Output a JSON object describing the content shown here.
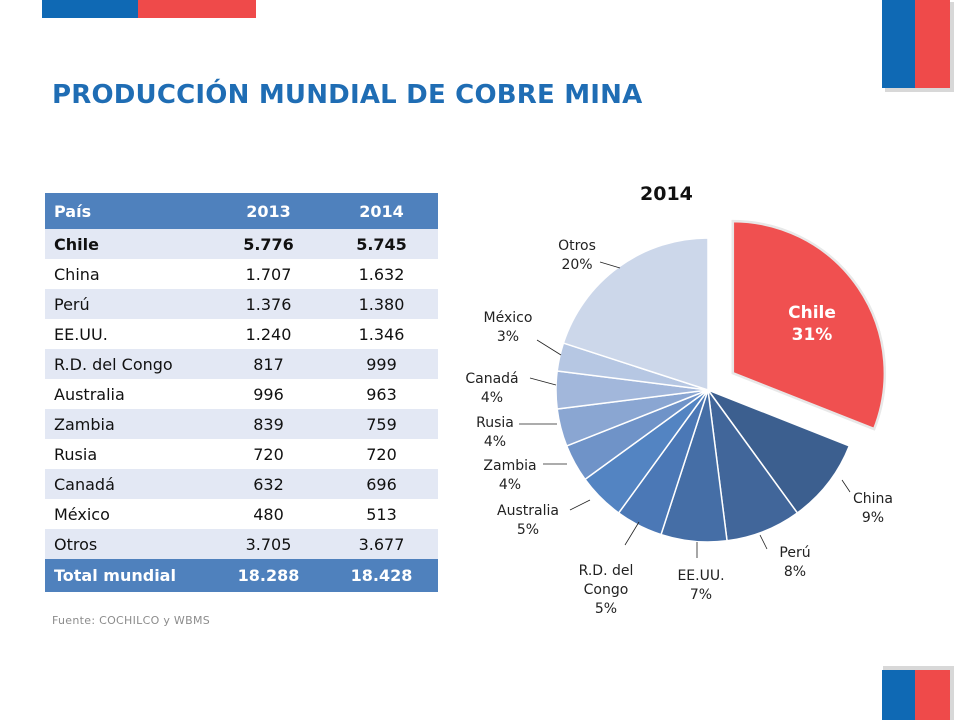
{
  "header": {
    "title": "PRODUCCIÓN MUNDIAL DE COBRE MINA"
  },
  "colors": {
    "flag_blue": "#0f69b4",
    "flag_red": "#ef4a4a",
    "title": "#1f6db4",
    "table_header": "#4f81bd",
    "table_band": "#e3e8f4",
    "highlight_slice": "#f05050"
  },
  "table": {
    "columns": [
      "País",
      "2013",
      "2014"
    ],
    "rows": [
      [
        "Chile",
        "5.776",
        "5.745"
      ],
      [
        "China",
        "1.707",
        "1.632"
      ],
      [
        "Perú",
        "1.376",
        "1.380"
      ],
      [
        "EE.UU.",
        "1.240",
        "1.346"
      ],
      [
        "R.D. del Congo",
        "817",
        "999"
      ],
      [
        "Australia",
        "996",
        "963"
      ],
      [
        "Zambia",
        "839",
        "759"
      ],
      [
        "Rusia",
        "720",
        "720"
      ],
      [
        "Canadá",
        "632",
        "696"
      ],
      [
        "México",
        "480",
        "513"
      ],
      [
        "Otros",
        "3.705",
        "3.677"
      ]
    ],
    "total": [
      "Total mundial",
      "18.288",
      "18.428"
    ]
  },
  "source": "Fuente: COCHILCO y WBMS",
  "chart_data": {
    "type": "pie",
    "title": "2014",
    "categories": [
      "Chile",
      "China",
      "Perú",
      "EE.UU.",
      "R.D. del Congo",
      "Australia",
      "Zambia",
      "Rusia",
      "Canadá",
      "México",
      "Otros"
    ],
    "values": [
      31,
      9,
      8,
      7,
      5,
      5,
      4,
      4,
      4,
      3,
      20
    ],
    "labels": [
      "31%",
      "9%",
      "8%",
      "7%",
      "5%",
      "5%",
      "4%",
      "4%",
      "4%",
      "3%",
      "20%"
    ],
    "colors": [
      "#f05050",
      "#3c5f8f",
      "#41669a",
      "#456ea6",
      "#4b78b6",
      "#5384c2",
      "#6f93c8",
      "#8aa6d2",
      "#a2b7db",
      "#b6c7e3",
      "#ccd7ea"
    ],
    "exploded": "Chile",
    "legend": "none"
  }
}
